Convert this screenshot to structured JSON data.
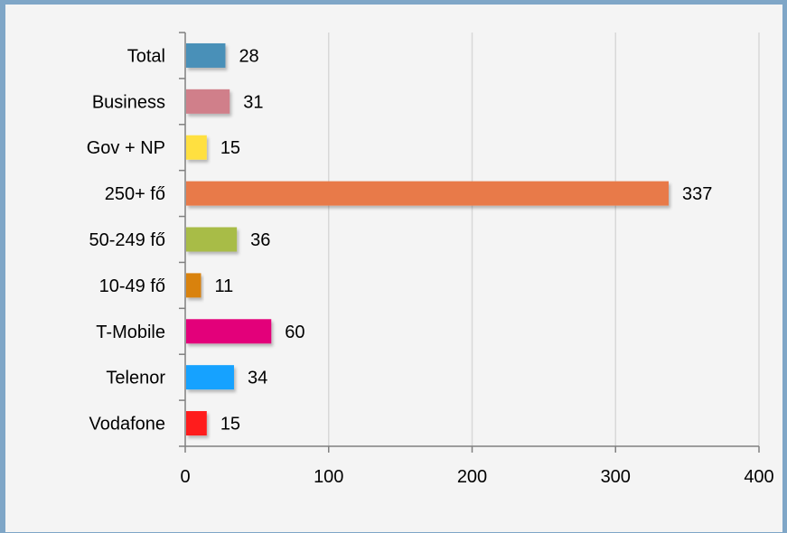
{
  "chart_data": {
    "type": "bar",
    "orientation": "horizontal",
    "categories": [
      "Total",
      "Business",
      "Gov + NP",
      "250+ fő",
      "50-249 fő",
      "10-49 fő",
      "T-Mobile",
      "Telenor",
      "Vodafone"
    ],
    "values": [
      28,
      31,
      15,
      337,
      36,
      11,
      60,
      34,
      15
    ],
    "value_labels": [
      "28",
      "31",
      "15",
      "337",
      "36",
      "11",
      "60",
      "34",
      "15"
    ],
    "colors": [
      "#4a90b8",
      "#d07f8a",
      "#ffe040",
      "#e87a48",
      "#a8bc46",
      "#d98209",
      "#e3007a",
      "#16a2ff",
      "#ff1a1a"
    ],
    "title": "",
    "xlabel": "",
    "ylabel": "",
    "xlim": [
      0,
      400
    ],
    "xticks": [
      0,
      100,
      200,
      300,
      400
    ],
    "xtick_labels": [
      "0",
      "100",
      "200",
      "300",
      "400"
    ],
    "grid": "vertical",
    "legend": "none",
    "gridline_color": "#d8d8d8",
    "axis_color": "#808080"
  }
}
